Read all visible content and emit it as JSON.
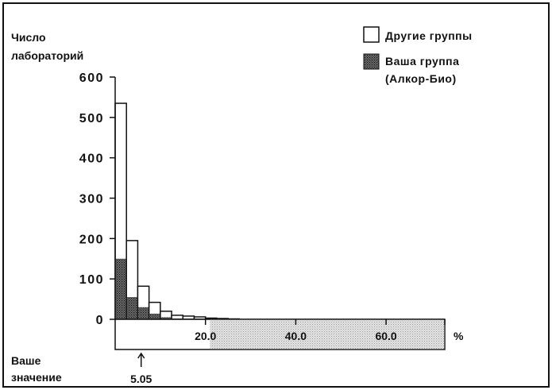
{
  "chart_data": {
    "type": "bar",
    "ylabel_lines": [
      "Число",
      "лабораторий"
    ],
    "xunit": "%",
    "yticks": [
      0,
      100,
      200,
      300,
      400,
      500,
      600
    ],
    "ylim": [
      0,
      600
    ],
    "xlim": [
      0,
      73
    ],
    "xticks": [
      "20.0",
      "40.0",
      "60.0"
    ],
    "xtick_values": [
      20,
      40,
      60
    ],
    "bin_width": 2.5,
    "bins_start": [
      0,
      2.5,
      5,
      7.5,
      10,
      12.5,
      15,
      17.5,
      20,
      22.5,
      25
    ],
    "series": [
      {
        "name": "Другие группы",
        "values": [
          535,
          195,
          82,
          42,
          20,
          10,
          8,
          6,
          3,
          2,
          1
        ]
      },
      {
        "name": "Ваша группа (Алкор-Био)",
        "values": [
          150,
          55,
          30,
          14,
          5,
          2,
          1,
          1,
          0,
          0,
          0
        ]
      }
    ],
    "legend": {
      "position": "top-right",
      "entries": [
        {
          "label_lines": [
            "Другие группы"
          ],
          "style": "white"
        },
        {
          "label_lines": [
            "Ваша группа",
            "(Алкор-Био)"
          ],
          "style": "dark-stipple"
        }
      ]
    },
    "range_bar": {
      "shaded_from": 21
    },
    "marker": {
      "label_lines": [
        "Ваше",
        "значение"
      ],
      "value_label": "5.05",
      "value": 5.05
    },
    "grid": false
  }
}
